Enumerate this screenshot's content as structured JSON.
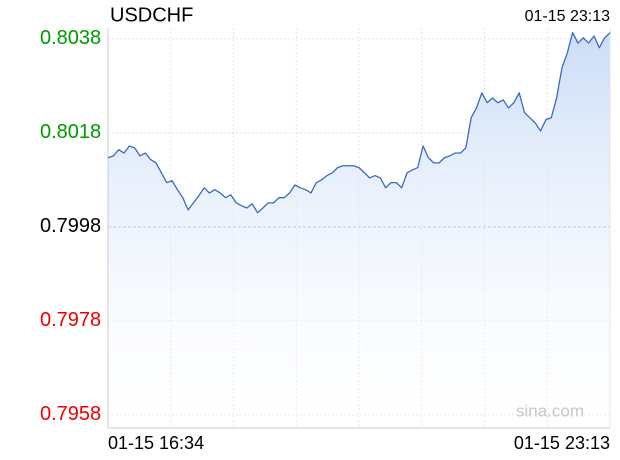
{
  "chart_data": {
    "type": "line",
    "title": "USDCHF",
    "latest_time": "01-15 23:13",
    "source": "sina.com",
    "categories": [
      "01-15 16:34",
      null,
      null,
      null,
      null,
      null,
      null,
      null,
      null,
      null,
      null,
      null,
      null,
      null,
      null,
      null,
      null,
      null,
      null,
      null,
      null,
      null,
      null,
      null,
      null,
      null,
      null,
      null,
      null,
      null,
      null,
      null,
      null,
      null,
      null,
      null,
      null,
      null,
      null,
      null,
      null,
      null,
      null,
      null,
      null,
      null,
      null,
      null,
      null,
      null,
      null,
      null,
      null,
      null,
      null,
      null,
      null,
      null,
      null,
      null,
      null,
      null,
      null,
      null,
      null,
      null,
      null,
      null,
      null,
      null,
      null,
      null,
      null,
      null,
      null,
      null,
      null,
      null,
      null,
      null,
      null,
      null,
      null,
      null,
      null,
      null,
      null,
      null,
      null,
      null,
      null,
      null,
      null,
      null,
      "01-15 23:13"
    ],
    "values": [
      0.80127,
      0.80131,
      0.80144,
      0.80137,
      0.80152,
      0.80148,
      0.80131,
      0.80137,
      0.80123,
      0.80116,
      0.80095,
      0.80074,
      0.80078,
      0.80059,
      0.80042,
      0.80016,
      0.80031,
      0.80046,
      0.80063,
      0.80052,
      0.80059,
      0.80052,
      0.80042,
      0.80048,
      0.80031,
      0.80025,
      0.8002,
      0.80029,
      0.8001,
      0.8002,
      0.80031,
      0.80031,
      0.80042,
      0.80042,
      0.80052,
      0.80069,
      0.80063,
      0.80059,
      0.80052,
      0.80074,
      0.8008,
      0.80089,
      0.80095,
      0.80106,
      0.8011,
      0.8011,
      0.8011,
      0.80106,
      0.80095,
      0.80084,
      0.80089,
      0.80084,
      0.80063,
      0.80074,
      0.80074,
      0.80063,
      0.80095,
      0.80101,
      0.80106,
      0.80152,
      0.80127,
      0.80116,
      0.80116,
      0.80127,
      0.80131,
      0.80137,
      0.80137,
      0.80148,
      0.80212,
      0.80233,
      0.80265,
      0.80244,
      0.80254,
      0.80244,
      0.8025,
      0.80233,
      0.80244,
      0.80265,
      0.80223,
      0.80212,
      0.80201,
      0.80184,
      0.80208,
      0.80212,
      0.80254,
      0.80318,
      0.8035,
      0.80393,
      0.80371,
      0.80382,
      0.80371,
      0.80386,
      0.80361,
      0.80382,
      0.80393
    ],
    "color": "#3a6bc0",
    "fill_color": "#d6e4fa",
    "ylim": [
      0.79552,
      0.80403
    ],
    "yticks": [
      0.7958,
      0.7978,
      0.7998,
      0.8018,
      0.8038
    ],
    "prev_close": 0.7998,
    "up_color": "#009900",
    "down_color": "#ee0000",
    "flat_color": "#000000",
    "grid": true
  }
}
